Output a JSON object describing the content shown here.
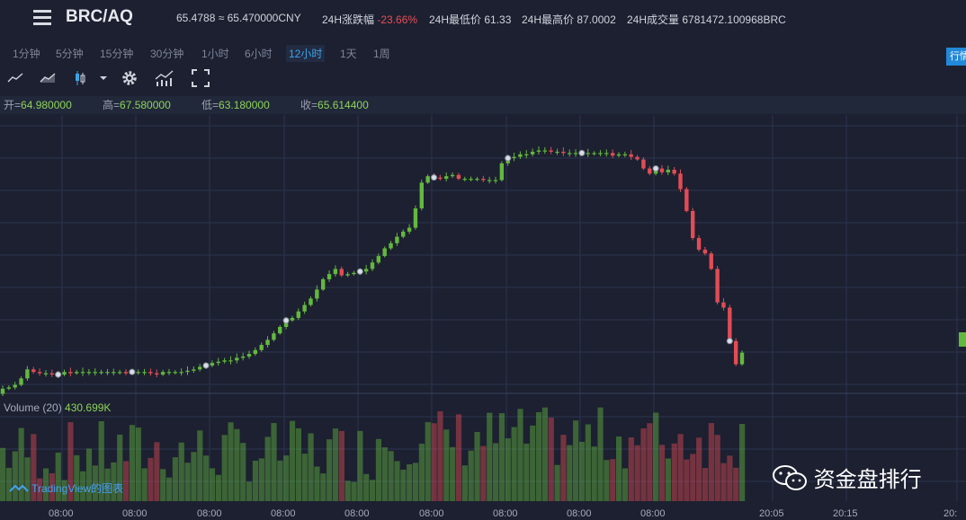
{
  "header": {
    "pair": "BRC/AQ",
    "price": "65.4788 ≈ 65.470000CNY",
    "change_label": "24H涨跌幅",
    "change_value": "-23.66%",
    "low_label": "24H最低价",
    "low_value": "61.33",
    "high_label": "24H最高价",
    "high_value": "87.0002",
    "volume_label": "24H成交量",
    "volume_value": "6781472.100968BRC"
  },
  "timeframes": [
    "1分钟",
    "5分钟",
    "15分钟",
    "30分钟",
    "1小时",
    "6小时",
    "12小时",
    "1天",
    "1周"
  ],
  "active_timeframe": "12小时",
  "side_tab": "行情",
  "toolbar": {
    "icons": [
      "line-chart-icon",
      "area-chart-icon",
      "candlestick-icon",
      "dropdown-arrow-icon",
      "gear-icon",
      "indicator-icon",
      "fullscreen-icon"
    ]
  },
  "ohlc": {
    "open_label": "开=",
    "open": "64.980000",
    "high_label": "高=",
    "high": "67.580000",
    "low_label": "低=",
    "low": "63.180000",
    "close_label": "收=",
    "close": "65.614400"
  },
  "volume": {
    "label": "Volume (20)",
    "value": "430.699K"
  },
  "tradingview_label": "TradingView的图表",
  "watermark": "资金盘排行",
  "x_ticks": [
    "08:00",
    "08:00",
    "08:00",
    "08:00",
    "08:00",
    "08:00",
    "08:00",
    "08:00",
    "08:00",
    "20:05",
    "20:15",
    "20:"
  ],
  "colors": {
    "up": "#63b83e",
    "down": "#e24c55",
    "bg": "#1c2030",
    "grid": "#2b3350"
  },
  "chart_data": {
    "type": "candlestick",
    "close": [
      61.5,
      61.6,
      61.8,
      62.3,
      63.0,
      62.8,
      62.7,
      62.7,
      62.6,
      62.6,
      62.8,
      62.7,
      62.8,
      62.8,
      62.8,
      62.8,
      62.8,
      62.8,
      62.8,
      62.8,
      62.7,
      62.8,
      62.8,
      62.8,
      62.7,
      62.6,
      62.8,
      62.8,
      62.8,
      62.8,
      62.9,
      63.0,
      63.2,
      63.3,
      63.5,
      63.6,
      63.7,
      63.7,
      63.9,
      64.0,
      64.2,
      64.5,
      64.9,
      65.3,
      65.8,
      66.3,
      66.8,
      67.0,
      67.5,
      68.0,
      68.5,
      69.2,
      70.0,
      70.4,
      70.8,
      70.3,
      70.4,
      70.5,
      70.6,
      70.8,
      71.3,
      71.8,
      72.4,
      72.8,
      73.3,
      73.7,
      74.0,
      75.5,
      77.5,
      78.0,
      77.9,
      77.8,
      78.0,
      78.1,
      77.8,
      77.8,
      77.8,
      77.8,
      77.7,
      77.7,
      77.7,
      79.0,
      79.4,
      79.5,
      79.7,
      79.7,
      79.9,
      80.0,
      80.0,
      79.9,
      79.9,
      79.8,
      79.8,
      79.8,
      79.8,
      79.8,
      79.8,
      79.8,
      79.8,
      79.6,
      79.7,
      79.7,
      79.5,
      79.3,
      78.6,
      78.2,
      78.6,
      78.3,
      78.5,
      78.2,
      77.0,
      75.3,
      73.2,
      72.3,
      72.0,
      70.8,
      68.2,
      67.8,
      65.2,
      63.4,
      64.3
    ]
  }
}
